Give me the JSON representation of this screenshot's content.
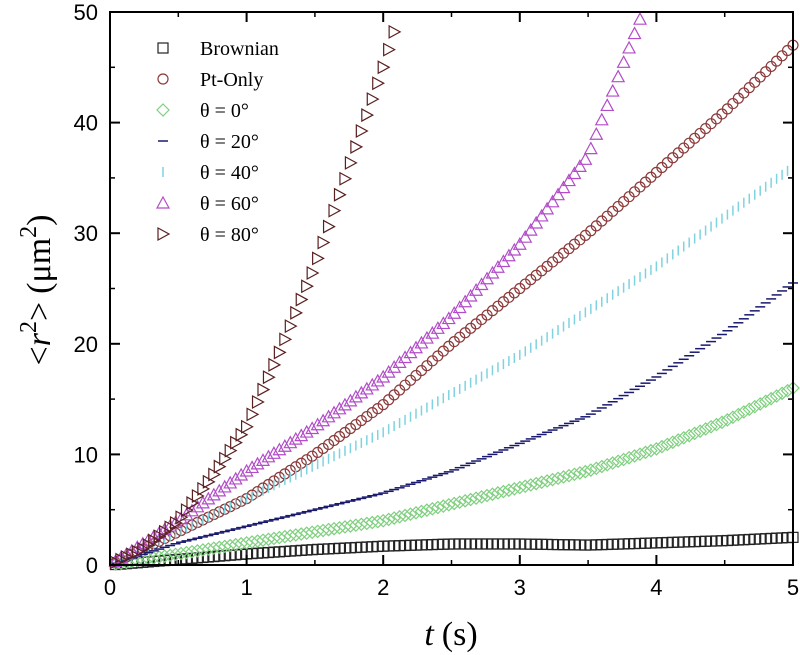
{
  "chart_data": {
    "type": "scatter",
    "xlabel": {
      "var": "t",
      "unit": "(s)"
    },
    "ylabel": {
      "open": "<",
      "var": "r",
      "sup": "2",
      "close": ">",
      "unit": "(μm",
      "unit_sup": "2",
      "unit_close": ")"
    },
    "xlim": [
      0,
      5
    ],
    "ylim": [
      0,
      50
    ],
    "xticks": [
      "0",
      "1",
      "2",
      "3",
      "4",
      "5"
    ],
    "yticks": [
      "0",
      "10",
      "20",
      "30",
      "40",
      "50"
    ],
    "grid": false,
    "legend_position": "top-left",
    "series": [
      {
        "name": "Brownian",
        "marker": "square",
        "color": "#222222",
        "x": [
          0,
          0.5,
          1,
          1.5,
          2,
          2.5,
          3,
          3.5,
          4,
          4.5,
          5
        ],
        "y": [
          0,
          0.5,
          1.0,
          1.4,
          1.7,
          1.9,
          1.9,
          1.8,
          2.0,
          2.2,
          2.5
        ]
      },
      {
        "name": "Pt-Only",
        "marker": "circle",
        "color": "#8b3a3a",
        "x": [
          0,
          0.5,
          1,
          1.5,
          2,
          2.5,
          3,
          3.5,
          4,
          4.5,
          5
        ],
        "y": [
          0,
          3,
          6,
          10,
          14.5,
          20,
          25,
          30,
          35.5,
          41,
          47
        ]
      },
      {
        "name": "θ = 0°",
        "marker": "diamond",
        "color": "#7fcf7f",
        "x": [
          0,
          0.5,
          1,
          1.5,
          2,
          2.5,
          3,
          3.5,
          4,
          4.5,
          5
        ],
        "y": [
          0,
          1,
          2,
          3,
          4,
          5.5,
          7,
          8.5,
          10.5,
          13,
          16
        ]
      },
      {
        "name": "θ = 20°",
        "marker": "hline",
        "color": "#1a1a6e",
        "x": [
          0,
          0.5,
          1,
          1.5,
          2,
          2.5,
          3,
          3.5,
          4,
          4.5,
          5
        ],
        "y": [
          0,
          2,
          3.5,
          5,
          6.5,
          8.5,
          11,
          13.5,
          17,
          21,
          25.5
        ]
      },
      {
        "name": "θ = 40°",
        "marker": "vline",
        "color": "#7fd3e0",
        "x": [
          0,
          0.5,
          1,
          1.5,
          2,
          2.5,
          3,
          3.5,
          4,
          4.5,
          5
        ],
        "y": [
          0,
          3,
          6,
          9,
          12,
          15.5,
          19,
          23,
          27,
          31.5,
          36
        ]
      },
      {
        "name": "θ = 60°",
        "marker": "triangle-up",
        "color": "#b24cc8",
        "x": [
          0,
          0.5,
          1,
          1.5,
          2,
          2.5,
          3,
          3.5,
          3.9
        ],
        "y": [
          0,
          4,
          8.5,
          12.5,
          17,
          22.5,
          29,
          37,
          50
        ]
      },
      {
        "name": "θ = 80°",
        "marker": "triangle-right",
        "color": "#5a2020",
        "x": [
          0,
          0.25,
          0.5,
          0.75,
          1,
          1.25,
          1.5,
          1.75,
          2,
          2.1
        ],
        "y": [
          0,
          1.5,
          4,
          8,
          12.5,
          19.5,
          27,
          36,
          45,
          49
        ]
      }
    ]
  }
}
